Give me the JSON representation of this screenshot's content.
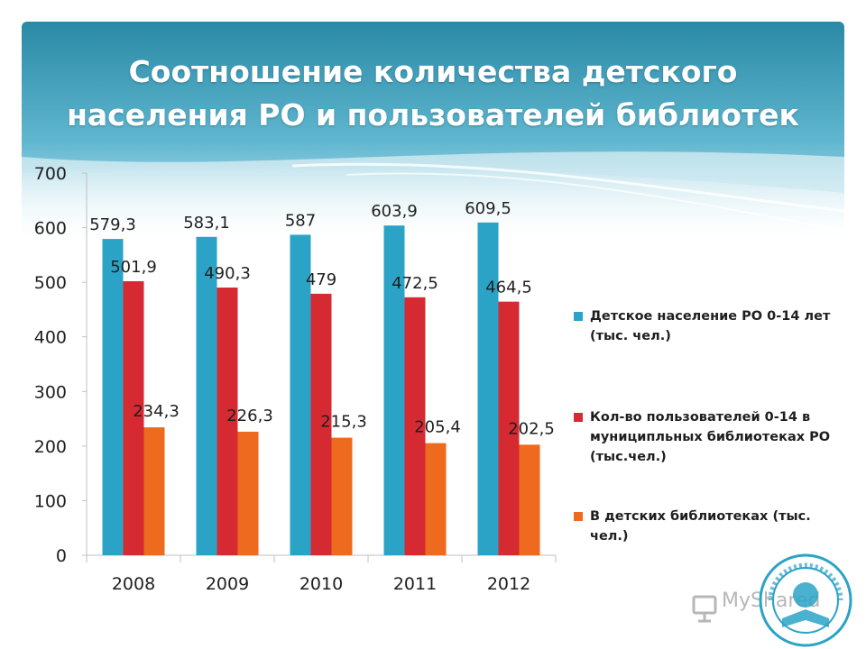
{
  "title": {
    "line1": "Соотношение количества детского",
    "line2": "населения РО и пользователей библиотек"
  },
  "colors": {
    "header_top": "#2a8aa6",
    "header_bottom": "#8fd0e0",
    "series": [
      "#2aa3c6",
      "#d62a33",
      "#ee6a1e"
    ],
    "axis": "#bfbfbf",
    "text": "#1f1f1f"
  },
  "chart_data": {
    "type": "bar",
    "title": "Соотношение количества детского населения РО и пользователей библиотек",
    "categories": [
      "2008",
      "2009",
      "2010",
      "2011",
      "2012"
    ],
    "ylim": [
      0,
      700
    ],
    "yticks": [
      0,
      100,
      200,
      300,
      400,
      500,
      600,
      700
    ],
    "legend_position": "right",
    "series": [
      {
        "name": "Детское население РО 0-14 лет (тыс. чел.)",
        "values": [
          579.3,
          583.1,
          587,
          603.9,
          609.5
        ],
        "labels": [
          "579,3",
          "583,1",
          "587",
          "603,9",
          "609,5"
        ]
      },
      {
        "name": "Кол-во пользователей 0-14 в муниципльных библиотеках РО (тыс.чел.)",
        "values": [
          501.9,
          490.3,
          479,
          472.5,
          464.5
        ],
        "labels": [
          "501,9",
          "490,3",
          "479",
          "472,5",
          "464,5"
        ]
      },
      {
        "name": "В детских библиотеках (тыс. чел.)",
        "values": [
          234.3,
          226.3,
          215.3,
          205.4,
          202.5
        ],
        "labels": [
          "234,3",
          "226,3",
          "215,3",
          "205,4",
          "202,5"
        ]
      }
    ]
  },
  "legend": [
    {
      "lines": [
        "Детское население РО 0-14 лет",
        "(тыс. чел.)"
      ]
    },
    {
      "lines": [
        "Кол-во пользователей 0-14 в",
        "муниципльных библиотеках РО",
        "(тыс.чел.)"
      ]
    },
    {
      "lines": [
        "В детских библиотеках (тыс.",
        "чел.)"
      ]
    }
  ],
  "watermark": {
    "text": "MyShared"
  }
}
